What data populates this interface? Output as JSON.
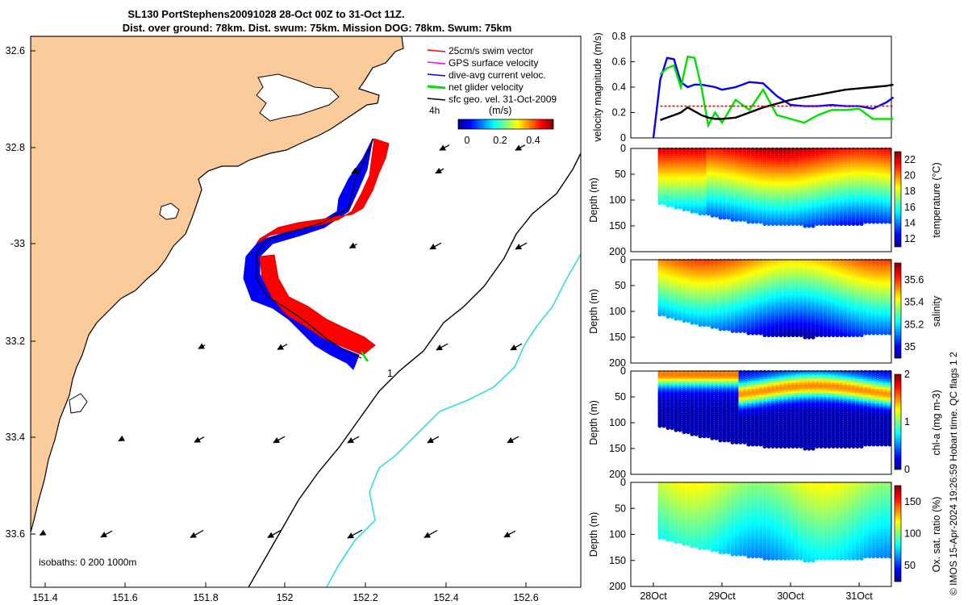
{
  "header": {
    "title_line1": "SL130 PortStephens20091028 28-Oct 00Z to 31-Oct 11Z.",
    "title_line2": "Dist. over ground: 78km. Dist. swum: 75km. Mission DOG: 78km. Swum: 75km"
  },
  "map": {
    "lon_ticks": [
      "151.4",
      "151.6",
      "151.8",
      "152",
      "152.2",
      "152.4",
      "152.6"
    ],
    "lat_ticks": [
      "32.6",
      "32.8",
      "-33",
      "33.2",
      "33.4",
      "33.6"
    ],
    "legend": [
      {
        "label": "25cm/s swim vector",
        "color": "#ff0000"
      },
      {
        "label": "GPS surface velocity",
        "color": "#ff00ff"
      },
      {
        "label": "dive-avg current veloc.",
        "color": "#0000ff"
      },
      {
        "label": "net glider velocity",
        "color": "#00e000"
      },
      {
        "label": "sfc geo. vel. 31-Oct-2009",
        "color": "#000000"
      }
    ],
    "time_step_label": "4h",
    "colorbar_unit": "(m/s)",
    "colorbar_ticks": [
      "0",
      "0.2",
      "0.4"
    ],
    "isobath_label": "isobaths: 0   200  1000m",
    "isobath_marker": "1",
    "land_color": "#fbcb9b",
    "isobath_200_color": "#000000",
    "isobath_1000_color": "#33dddd"
  },
  "chart_data": [
    {
      "type": "line",
      "title": "",
      "ylabel": "velocity magnitude (m/s)",
      "ylim": [
        0,
        0.8
      ],
      "yticks": [
        "0",
        "0.2",
        "0.4",
        "0.6",
        "0.8"
      ],
      "x": [
        "28.1",
        "28.2",
        "28.3",
        "28.4",
        "28.5",
        "28.6",
        "28.7",
        "28.8",
        "28.9",
        "29.0",
        "29.2",
        "29.4",
        "29.6",
        "29.8",
        "30.0",
        "30.2",
        "30.4",
        "30.6",
        "30.8",
        "31.0",
        "31.2",
        "31.4",
        "31.5"
      ],
      "series": [
        {
          "color": "#0000ff",
          "values": [
            0.46,
            0.63,
            0.62,
            0.44,
            0.4,
            0.42,
            0.42,
            0.41,
            0.4,
            0.38,
            0.4,
            0.44,
            0.43,
            0.33,
            0.26,
            0.25,
            0.25,
            0.26,
            0.25,
            0.25,
            0.23,
            0.28,
            0.32
          ]
        },
        {
          "color": "#00e000",
          "values": [
            0.5,
            0.55,
            0.57,
            0.4,
            0.64,
            0.63,
            0.4,
            0.1,
            0.2,
            0.12,
            0.3,
            0.22,
            0.38,
            0.18,
            0.15,
            0.12,
            0.18,
            0.22,
            0.22,
            0.23,
            0.15,
            0.15,
            0.15
          ]
        },
        {
          "color": "#000000",
          "values": [
            0.14,
            0.16,
            0.18,
            0.2,
            0.24,
            0.21,
            0.18,
            0.16,
            0.15,
            0.15,
            0.16,
            0.2,
            0.24,
            0.27,
            0.3,
            0.32,
            0.34,
            0.36,
            0.38,
            0.39,
            0.4,
            0.41,
            0.42
          ]
        },
        {
          "color": "#ff0000",
          "values": [
            0.25,
            0.25,
            0.25,
            0.25,
            0.25,
            0.25,
            0.25,
            0.25,
            0.25,
            0.25,
            0.25,
            0.25,
            0.25,
            0.25,
            0.25,
            0.25,
            0.25,
            0.25,
            0.25,
            0.25,
            0.25,
            0.25,
            0.25
          ]
        }
      ]
    },
    {
      "type": "scatter",
      "ylabel": "Depth (m)",
      "clabel": "temperature (°C)",
      "ylim": [
        0,
        200
      ],
      "yticks": [
        "0",
        "50",
        "100",
        "150",
        "200"
      ],
      "cticks": [
        "12",
        "14",
        "16",
        "18",
        "20",
        "22"
      ],
      "clim": [
        11,
        23
      ]
    },
    {
      "type": "scatter",
      "ylabel": "Depth (m)",
      "clabel": "salinity",
      "ylim": [
        0,
        200
      ],
      "yticks": [
        "0",
        "50",
        "100",
        "150",
        "200"
      ],
      "cticks": [
        "35",
        "35.2",
        "35.4",
        "35.6"
      ],
      "clim": [
        34.9,
        35.75
      ]
    },
    {
      "type": "scatter",
      "ylabel": "Depth (m)",
      "clabel": "chl-a (mg m-3)",
      "ylim": [
        0,
        200
      ],
      "yticks": [
        "0",
        "50",
        "100",
        "150",
        "200"
      ],
      "cticks": [
        "0",
        "1",
        "2"
      ],
      "clim": [
        0,
        2
      ]
    },
    {
      "type": "scatter",
      "ylabel": "Depth (m)",
      "clabel": "Ox. sat. ratio (%)",
      "ylim": [
        0,
        200
      ],
      "yticks": [
        "0",
        "50",
        "100",
        "150",
        "200"
      ],
      "cticks": [
        "50",
        "100",
        "150"
      ],
      "clim": [
        25,
        175
      ],
      "xticks": [
        "28Oct",
        "29Oct",
        "30Oct",
        "31Oct"
      ]
    }
  ],
  "footer": {
    "credit": "© IMOS 15-Apr-2024 19:26:59 Hobart time. QC flags 1  2"
  }
}
